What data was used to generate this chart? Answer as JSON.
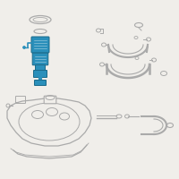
{
  "bg_color": "#f0eeea",
  "highlight_color": "#2a8fba",
  "line_color": "#aaaaaa",
  "dark_line": "#888888",
  "white_bg": "#f0eeea"
}
